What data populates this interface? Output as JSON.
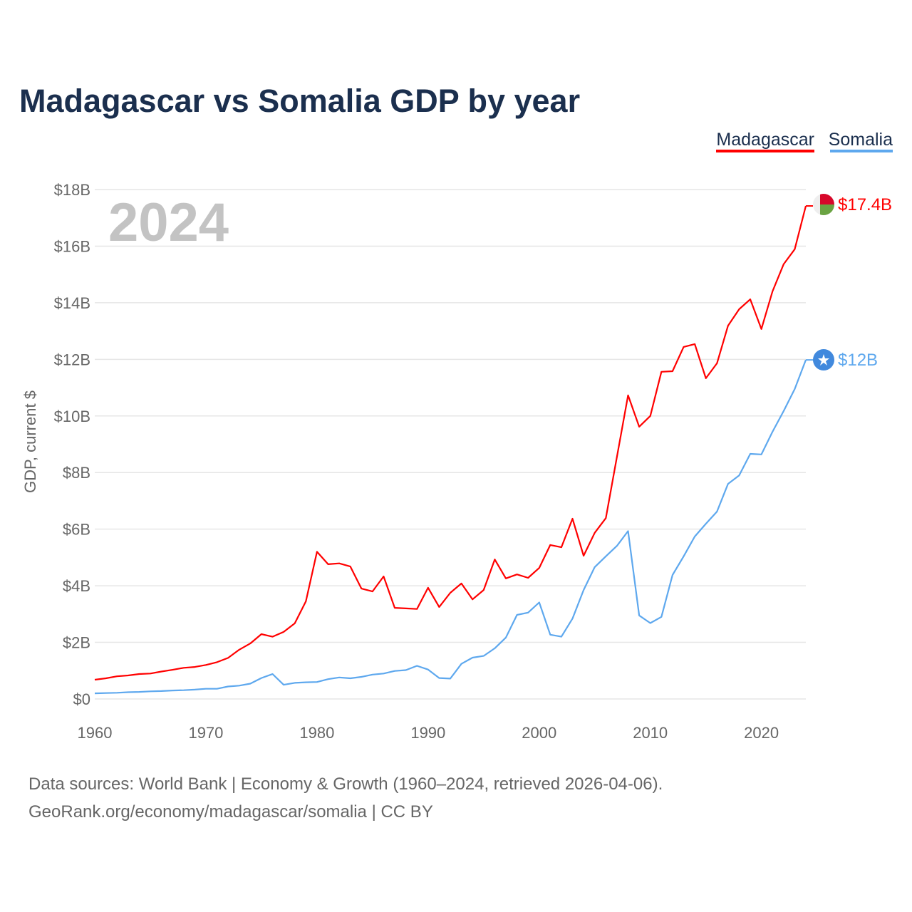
{
  "chart_data": {
    "type": "line",
    "title": "Madagascar vs Somalia GDP by year",
    "xlabel": "",
    "ylabel": "GDP, current $",
    "xlim": [
      1960,
      2024
    ],
    "ylim": [
      0,
      18
    ],
    "y_unit": "billion USD",
    "grid": true,
    "legend_placement": "top-right",
    "year_label": "2024",
    "x_ticks": [
      "1960",
      "1970",
      "1980",
      "1990",
      "2000",
      "2010",
      "2020"
    ],
    "x_tick_values": [
      1960,
      1970,
      1980,
      1990,
      2000,
      2010,
      2020
    ],
    "y_ticks": [
      "$0",
      "$2B",
      "$4B",
      "$6B",
      "$8B",
      "$10B",
      "$12B",
      "$14B",
      "$16B",
      "$18B"
    ],
    "y_tick_values": [
      0,
      2,
      4,
      6,
      8,
      10,
      12,
      14,
      16,
      18
    ],
    "x": [
      1960,
      1961,
      1962,
      1963,
      1964,
      1965,
      1966,
      1967,
      1968,
      1969,
      1970,
      1971,
      1972,
      1973,
      1974,
      1975,
      1976,
      1977,
      1978,
      1979,
      1980,
      1981,
      1982,
      1983,
      1984,
      1985,
      1986,
      1987,
      1988,
      1989,
      1990,
      1991,
      1992,
      1993,
      1994,
      1995,
      1996,
      1997,
      1998,
      1999,
      2000,
      2001,
      2002,
      2003,
      2004,
      2005,
      2006,
      2007,
      2008,
      2009,
      2010,
      2011,
      2012,
      2013,
      2014,
      2015,
      2016,
      2017,
      2018,
      2019,
      2020,
      2021,
      2022,
      2023,
      2024
    ],
    "series": [
      {
        "name": "Madagascar",
        "color": "#ff0000",
        "end_label": "$17.4B",
        "values": [
          0.68,
          0.73,
          0.8,
          0.83,
          0.88,
          0.9,
          0.97,
          1.03,
          1.1,
          1.13,
          1.2,
          1.3,
          1.45,
          1.74,
          1.96,
          2.29,
          2.2,
          2.37,
          2.67,
          3.45,
          5.2,
          4.76,
          4.79,
          4.68,
          3.9,
          3.8,
          4.33,
          3.22,
          3.2,
          3.18,
          3.93,
          3.25,
          3.75,
          4.08,
          3.52,
          3.85,
          4.93,
          4.26,
          4.4,
          4.28,
          4.63,
          5.44,
          5.36,
          6.37,
          5.06,
          5.87,
          6.39,
          8.56,
          10.73,
          9.62,
          10.0,
          11.56,
          11.58,
          12.44,
          12.54,
          11.33,
          11.86,
          13.19,
          13.77,
          14.12,
          13.07,
          14.4,
          15.36,
          15.89,
          17.42
        ]
      },
      {
        "name": "Somalia",
        "color": "#5ea8ee",
        "end_label": "$12B",
        "values": [
          0.2,
          0.21,
          0.22,
          0.24,
          0.25,
          0.27,
          0.28,
          0.3,
          0.31,
          0.33,
          0.36,
          0.36,
          0.44,
          0.47,
          0.54,
          0.74,
          0.88,
          0.5,
          0.57,
          0.59,
          0.6,
          0.7,
          0.76,
          0.73,
          0.78,
          0.86,
          0.9,
          0.99,
          1.02,
          1.17,
          1.04,
          0.74,
          0.72,
          1.24,
          1.46,
          1.52,
          1.79,
          2.17,
          2.97,
          3.05,
          3.41,
          2.27,
          2.2,
          2.84,
          3.85,
          4.66,
          5.04,
          5.41,
          5.93,
          2.95,
          2.68,
          2.9,
          4.38,
          5.04,
          5.74,
          6.19,
          6.62,
          7.6,
          7.9,
          8.66,
          8.64,
          9.44,
          10.17,
          10.95,
          11.98
        ]
      }
    ]
  },
  "footer": {
    "line1": "Data sources: World Bank | Economy & Growth (1960–2024, retrieved 2026-04-06).",
    "line2": "GeoRank.org/economy/madagascar/somalia | CC BY"
  },
  "icons": {
    "madagascar": "madagascar-flag-icon",
    "somalia": "somalia-flag-icon"
  }
}
